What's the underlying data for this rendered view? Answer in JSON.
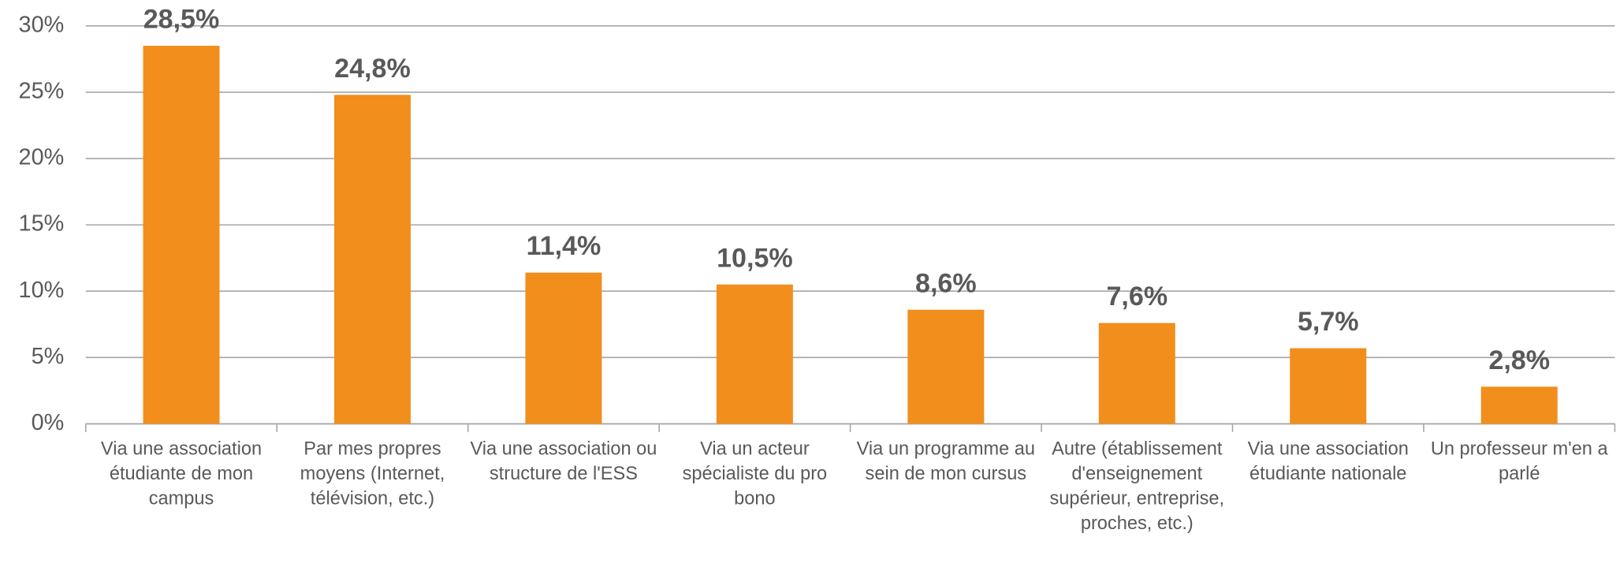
{
  "chart_data": {
    "type": "bar",
    "categories": [
      "Via une association étudiante de mon campus",
      "Par mes propres moyens (Internet, télévision, etc.)",
      "Via une association ou structure de l'ESS",
      "Via un acteur spécialiste du pro bono",
      "Via un programme au sein de mon cursus",
      "Autre (établissement d'enseignement supérieur, entreprise, proches, etc.)",
      "Via une association étudiante nationale",
      "Un professeur m'en a parlé"
    ],
    "values": [
      28.5,
      24.8,
      11.4,
      10.5,
      8.6,
      7.6,
      5.7,
      2.8
    ],
    "value_labels": [
      "28,5%",
      "24,8%",
      "11,4%",
      "10,5%",
      "8,6%",
      "7,6%",
      "5,7%",
      "2,8%"
    ],
    "color": "#f28e1c",
    "ylim": [
      0,
      30
    ],
    "yticks": [
      {
        "value": 0,
        "label": "0%"
      },
      {
        "value": 5,
        "label": "5%"
      },
      {
        "value": 10,
        "label": "10%"
      },
      {
        "value": 15,
        "label": "15%"
      },
      {
        "value": 20,
        "label": "20%"
      },
      {
        "value": 25,
        "label": "25%"
      },
      {
        "value": 30,
        "label": "30%"
      }
    ],
    "grid": true
  }
}
